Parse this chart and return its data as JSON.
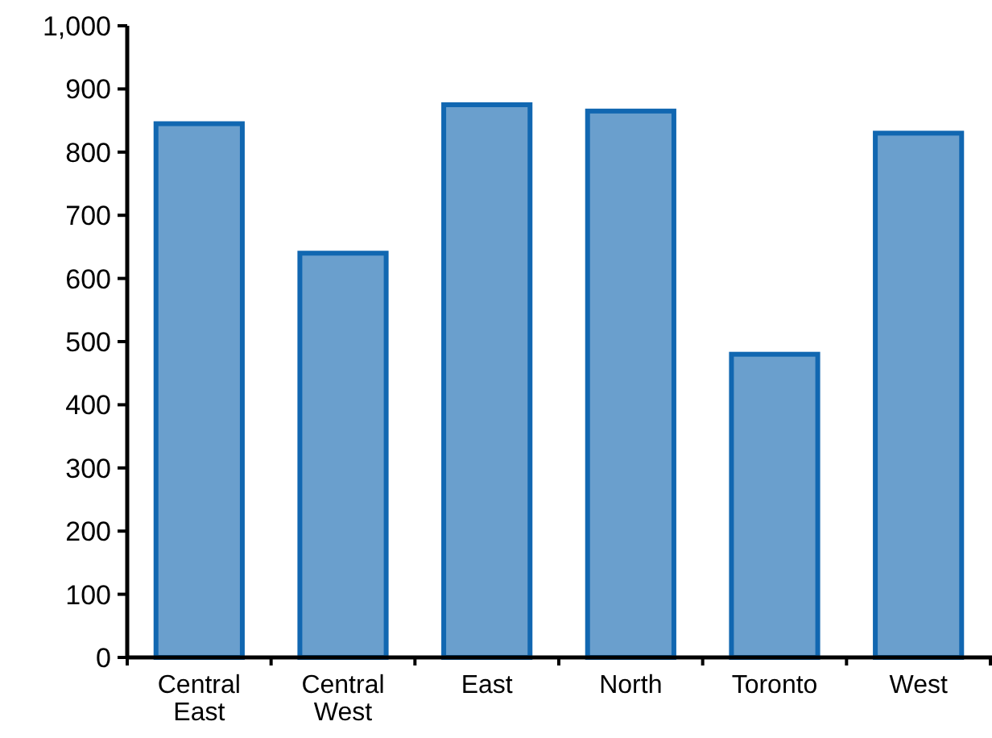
{
  "chart_data": {
    "type": "bar",
    "categories": [
      "Central\nEast",
      "Central\nWest",
      "East",
      "North",
      "Toronto",
      "West"
    ],
    "series": [
      {
        "color": "#6a9fcd",
        "values": [
          845,
          640,
          875,
          865,
          480,
          830
        ]
      }
    ],
    "ylim": [
      0,
      1000
    ],
    "yticks": [
      0,
      100,
      200,
      300,
      400,
      500,
      600,
      700,
      800,
      900,
      {
        "value": 1000,
        "label": "1,000"
      }
    ],
    "grid": false
  }
}
